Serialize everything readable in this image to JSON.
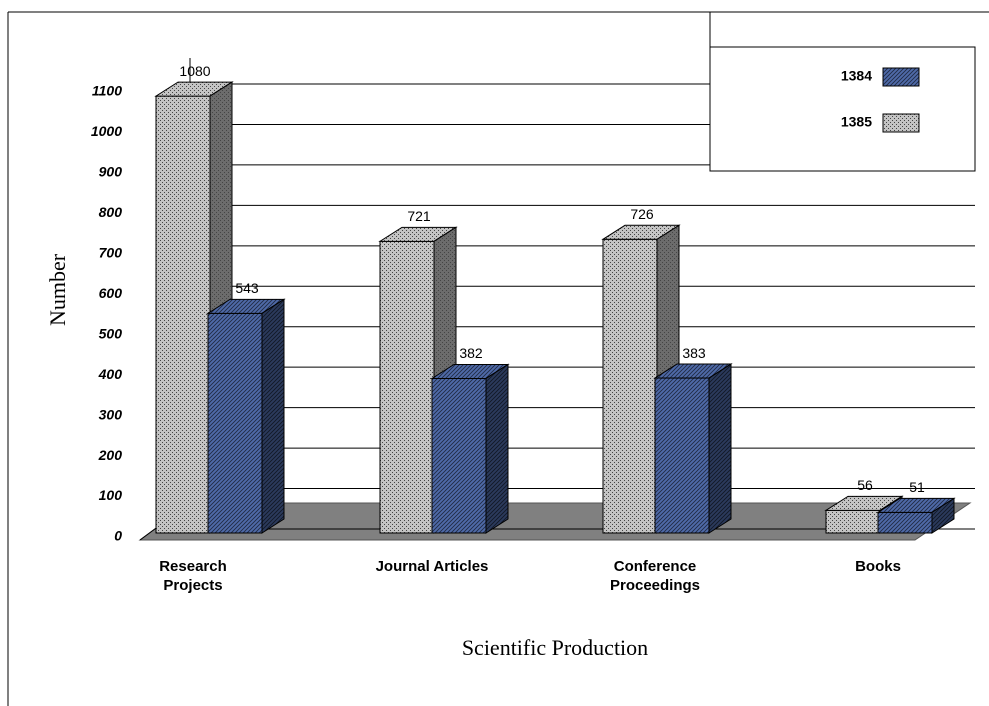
{
  "chart_data": {
    "type": "bar3d",
    "y_label": "Number",
    "x_label": "Scientific Production",
    "categories": [
      "Research Projects",
      "Journal Articles",
      "Conference Proceedings",
      "Books"
    ],
    "series": [
      {
        "name": "1384",
        "color": "#4f6aa8",
        "values": [
          543,
          382,
          383,
          51
        ]
      },
      {
        "name": "1385",
        "color": "#c4c4c4",
        "values": [
          1080,
          721,
          726,
          56
        ]
      }
    ],
    "ylim": [
      0,
      1100
    ],
    "yticks": [
      0,
      100,
      200,
      300,
      400,
      500,
      600,
      700,
      800,
      900,
      1000,
      1100
    ],
    "grid": true,
    "legend": "top-right"
  }
}
